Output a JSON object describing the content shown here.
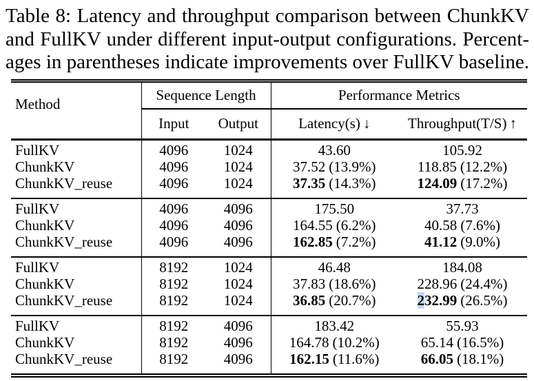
{
  "caption": {
    "lines": [
      "Table 8: Latency and throughput comparison between ChunkKV",
      "and FullKV under different input-output configurations. Percent-",
      "ages in parentheses indicate improvements over FullKV baseline."
    ]
  },
  "colors": {
    "text": "#000000",
    "background": "#ffffff",
    "selection_highlight": "#c9d8f0"
  },
  "table": {
    "header": {
      "method": "Method",
      "sequence_length": "Sequence Length",
      "performance_metrics": "Performance Metrics",
      "input": "Input",
      "output": "Output",
      "latency_label": "Latency(s)",
      "latency_arrow": "↓",
      "throughput_label": "Throughput(T/S)",
      "throughput_arrow": "↑"
    },
    "groups": [
      {
        "rows": [
          {
            "method": "FullKV",
            "input": "4096",
            "output": "1024",
            "latency": {
              "value": "43.60",
              "pct": "",
              "bold": false
            },
            "throughput": {
              "value": "105.92",
              "pct": "",
              "bold": false
            }
          },
          {
            "method": "ChunkKV",
            "input": "4096",
            "output": "1024",
            "latency": {
              "value": "37.52",
              "pct": "(13.9%)",
              "bold": false
            },
            "throughput": {
              "value": "118.85",
              "pct": "(12.2%)",
              "bold": false
            }
          },
          {
            "method": "ChunkKV_reuse",
            "input": "4096",
            "output": "1024",
            "latency": {
              "value": "37.35",
              "pct": "(14.3%)",
              "bold": true
            },
            "throughput": {
              "value": "124.09",
              "pct": "(17.2%)",
              "bold": true
            }
          }
        ]
      },
      {
        "rows": [
          {
            "method": "FullKV",
            "input": "4096",
            "output": "4096",
            "latency": {
              "value": "175.50",
              "pct": "",
              "bold": false
            },
            "throughput": {
              "value": "37.73",
              "pct": "",
              "bold": false
            }
          },
          {
            "method": "ChunkKV",
            "input": "4096",
            "output": "4096",
            "latency": {
              "value": "164.55",
              "pct": "(6.2%)",
              "bold": false
            },
            "throughput": {
              "value": "40.58",
              "pct": "(7.6%)",
              "bold": false
            }
          },
          {
            "method": "ChunkKV_reuse",
            "input": "4096",
            "output": "4096",
            "latency": {
              "value": "162.85",
              "pct": "(7.2%)",
              "bold": true
            },
            "throughput": {
              "value": "41.12",
              "pct": "(9.0%)",
              "bold": true
            }
          }
        ]
      },
      {
        "rows": [
          {
            "method": "FullKV",
            "input": "8192",
            "output": "1024",
            "latency": {
              "value": "46.48",
              "pct": "",
              "bold": false
            },
            "throughput": {
              "value": "184.08",
              "pct": "",
              "bold": false
            }
          },
          {
            "method": "ChunkKV",
            "input": "8192",
            "output": "1024",
            "latency": {
              "value": "37.83",
              "pct": "(18.6%)",
              "bold": false
            },
            "throughput": {
              "value": "228.96",
              "pct": "(24.4%)",
              "bold": false
            }
          },
          {
            "method": "ChunkKV_reuse",
            "input": "8192",
            "output": "1024",
            "latency": {
              "value": "36.85",
              "pct": "(20.7%)",
              "bold": true
            },
            "throughput": {
              "value": "232.99",
              "pct": "(26.5%)",
              "bold": true,
              "highlight": {
                "prefix": "2",
                "rest": "32.99"
              }
            }
          }
        ]
      },
      {
        "rows": [
          {
            "method": "FullKV",
            "input": "8192",
            "output": "4096",
            "latency": {
              "value": "183.42",
              "pct": "",
              "bold": false
            },
            "throughput": {
              "value": "55.93",
              "pct": "",
              "bold": false
            }
          },
          {
            "method": "ChunkKV",
            "input": "8192",
            "output": "4096",
            "latency": {
              "value": "164.78",
              "pct": "(10.2%)",
              "bold": false
            },
            "throughput": {
              "value": "65.14",
              "pct": "(16.5%)",
              "bold": false
            }
          },
          {
            "method": "ChunkKV_reuse",
            "input": "8192",
            "output": "4096",
            "latency": {
              "value": "162.15",
              "pct": "(11.6%)",
              "bold": true
            },
            "throughput": {
              "value": "66.05",
              "pct": "(18.1%)",
              "bold": true
            }
          }
        ]
      }
    ]
  }
}
